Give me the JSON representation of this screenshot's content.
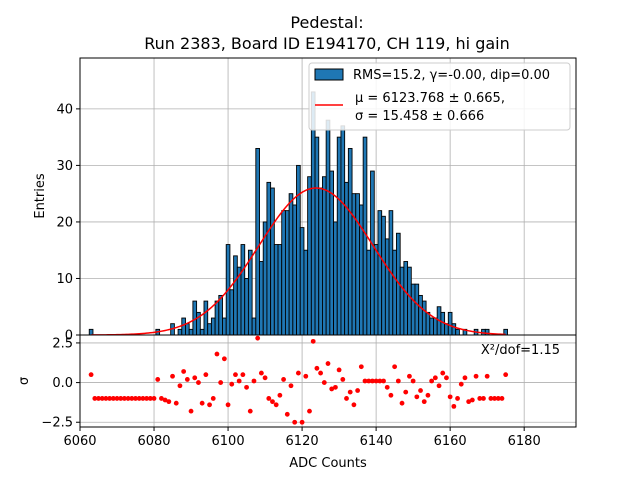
{
  "chart_data": [
    {
      "type": "bar",
      "title_line1": "Pedestal:",
      "title_line2": "Run 2383, Board ID E194170, CH 119, hi gain",
      "ylabel": "Entries",
      "ylim": [
        0,
        49
      ],
      "yticks": [
        0,
        10,
        20,
        30,
        40
      ],
      "grid": true,
      "legend_position": "top-right",
      "legend": {
        "hist_label": "RMS=15.2, γ=-0.00, dip=0.00",
        "fit_label_mu": "μ = 6123.768 ± 0.665,",
        "fit_label_sigma": "σ = 15.458 ± 0.666"
      },
      "fit": {
        "mu": 6123.768,
        "sigma": 15.458,
        "amplitude": 26.0
      },
      "bins": {
        "x": [
          6063,
          6064,
          6065,
          6066,
          6067,
          6068,
          6069,
          6070,
          6071,
          6072,
          6073,
          6074,
          6075,
          6076,
          6077,
          6078,
          6079,
          6080,
          6081,
          6082,
          6083,
          6084,
          6085,
          6086,
          6087,
          6088,
          6089,
          6090,
          6091,
          6092,
          6093,
          6094,
          6095,
          6096,
          6097,
          6098,
          6099,
          6100,
          6101,
          6102,
          6103,
          6104,
          6105,
          6106,
          6107,
          6108,
          6109,
          6110,
          6111,
          6112,
          6113,
          6114,
          6115,
          6116,
          6117,
          6118,
          6119,
          6120,
          6121,
          6122,
          6123,
          6124,
          6125,
          6126,
          6127,
          6128,
          6129,
          6130,
          6131,
          6132,
          6133,
          6134,
          6135,
          6136,
          6137,
          6138,
          6139,
          6140,
          6141,
          6142,
          6143,
          6144,
          6145,
          6146,
          6147,
          6148,
          6149,
          6150,
          6151,
          6152,
          6153,
          6154,
          6155,
          6156,
          6157,
          6158,
          6159,
          6160,
          6161,
          6162,
          6163,
          6164,
          6165,
          6166,
          6167,
          6168,
          6169,
          6170,
          6171,
          6172,
          6173,
          6174,
          6175
        ],
        "counts": [
          1,
          0,
          0,
          0,
          0,
          0,
          0,
          0,
          0,
          0,
          0,
          0,
          0,
          0,
          0,
          0,
          0,
          0,
          1,
          0,
          0,
          0,
          2,
          0,
          1,
          3,
          2,
          1,
          6,
          4,
          1,
          6,
          2,
          3,
          6,
          7,
          3,
          16,
          8,
          14,
          12,
          16,
          10,
          15,
          3,
          33,
          13,
          20,
          27,
          26,
          16,
          16,
          22,
          22,
          25,
          23,
          30,
          19,
          15,
          28,
          43,
          35,
          26,
          28,
          38,
          29,
          20,
          35,
          37,
          27,
          33,
          25,
          25,
          23,
          35,
          15,
          29,
          16,
          22,
          21,
          17,
          22,
          15,
          18,
          12,
          13,
          12,
          9,
          9,
          7,
          6,
          4,
          3,
          3,
          5,
          4,
          2,
          4,
          2,
          1,
          0,
          1,
          0,
          0,
          1,
          0,
          1,
          1,
          0,
          0,
          0,
          0,
          1
        ]
      }
    },
    {
      "type": "scatter",
      "xlabel": "ADC Counts",
      "ylabel": "σ",
      "xlim": [
        6060,
        6194
      ],
      "xticks": [
        6060,
        6080,
        6100,
        6120,
        6140,
        6160,
        6180
      ],
      "ylim": [
        -2.8,
        3.0
      ],
      "yticks": [
        -2.5,
        0.0,
        2.5
      ],
      "ytick_labels": [
        "−2.5",
        "0.0",
        "2.5"
      ],
      "grid": true,
      "annotation": "X²/dof=1.15",
      "residuals": {
        "x": [
          6063,
          6064,
          6065,
          6066,
          6067,
          6068,
          6069,
          6070,
          6071,
          6072,
          6073,
          6074,
          6075,
          6076,
          6077,
          6078,
          6079,
          6080,
          6081,
          6082,
          6083,
          6084,
          6085,
          6086,
          6087,
          6088,
          6089,
          6090,
          6091,
          6092,
          6093,
          6094,
          6095,
          6096,
          6097,
          6098,
          6099,
          6100,
          6101,
          6102,
          6103,
          6104,
          6105,
          6106,
          6107,
          6108,
          6109,
          6110,
          6111,
          6112,
          6113,
          6114,
          6115,
          6116,
          6117,
          6118,
          6119,
          6120,
          6121,
          6122,
          6123,
          6124,
          6125,
          6126,
          6127,
          6128,
          6129,
          6130,
          6131,
          6132,
          6133,
          6134,
          6135,
          6136,
          6137,
          6138,
          6139,
          6140,
          6141,
          6142,
          6143,
          6144,
          6145,
          6146,
          6147,
          6148,
          6149,
          6150,
          6151,
          6152,
          6153,
          6154,
          6155,
          6156,
          6157,
          6158,
          6159,
          6160,
          6161,
          6162,
          6163,
          6164,
          6165,
          6166,
          6167,
          6168,
          6169,
          6170,
          6171,
          6172,
          6173,
          6174,
          6175
        ],
        "y": [
          0.5,
          -1.0,
          -1.0,
          -1.0,
          -1.0,
          -1.0,
          -1.0,
          -1.0,
          -1.0,
          -1.0,
          -1.0,
          -1.0,
          -1.0,
          -1.0,
          -1.0,
          -1.0,
          -1.0,
          -1.0,
          0.2,
          -1.0,
          -1.1,
          -1.2,
          0.4,
          -1.3,
          -0.2,
          0.7,
          0.2,
          -1.8,
          0.3,
          0.0,
          -1.3,
          0.5,
          -1.4,
          -1.0,
          1.8,
          0.0,
          1.5,
          -1.4,
          -0.1,
          0.5,
          0.1,
          0.5,
          -0.3,
          -1.8,
          0.1,
          2.8,
          0.6,
          0.3,
          -1.0,
          -1.2,
          -1.4,
          -0.8,
          0.2,
          -2.0,
          -0.2,
          -2.5,
          0.6,
          -2.5,
          0.4,
          -1.8,
          2.6,
          0.9,
          0.6,
          0.0,
          1.2,
          -0.4,
          -0.3,
          0.8,
          0.2,
          -1.0,
          -0.6,
          -1.4,
          -0.5,
          1.0,
          0.1,
          0.1,
          0.1,
          0.1,
          0.1,
          0.1,
          -0.3,
          -0.8,
          1.0,
          0.1,
          -1.3,
          -0.6,
          0.4,
          0.1,
          -0.9,
          -0.5,
          -1.2,
          -0.8,
          0.1,
          0.3,
          -0.2,
          0.6,
          0.3,
          -0.9,
          -1.5,
          -1.0,
          -0.1,
          0.3,
          -1.2,
          -1.1,
          0.4,
          -1.0,
          -1.0,
          0.4,
          -1.0,
          -1.0,
          -1.0,
          -1.0,
          0.5
        ]
      }
    }
  ]
}
